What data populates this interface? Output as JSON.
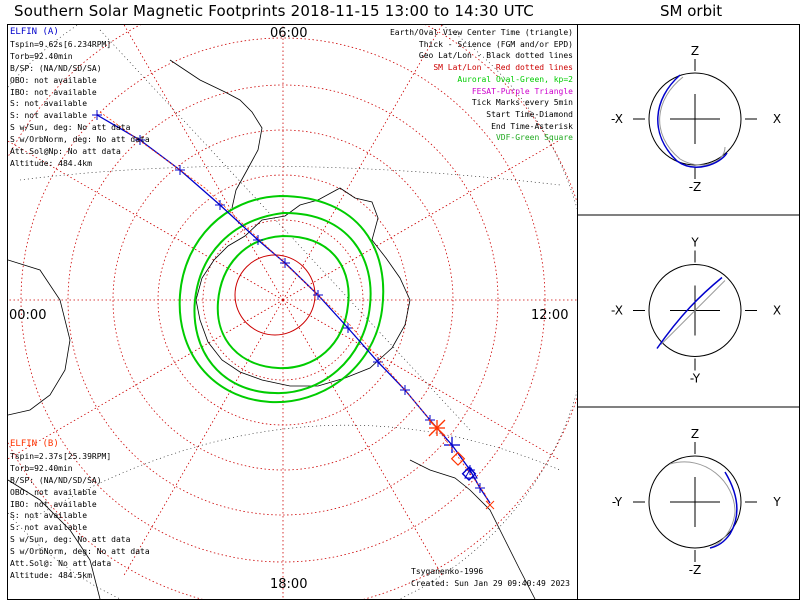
{
  "title": "Southern Solar Magnetic Footprints 2018-11-15 13:00 to 14:30 UTC",
  "orbit_title": "SM orbit",
  "colors": {
    "elfin_a": "#0000cc",
    "elfin_b": "#ff3300",
    "geo_grid": "#000000",
    "sm_grid": "#cc0000",
    "auroral_oval": "#00cc00",
    "fesat": "#cc00cc",
    "vdf": "#22aa22",
    "orbit_circle": "#000000",
    "orbit_path_b": "#999999"
  },
  "map": {
    "mlt_labels": {
      "top": "06:00",
      "left": "00:00",
      "right": "12:00",
      "bottom": "18:00"
    },
    "credit": "Tsyganenko-1996",
    "created": "Created: Sun Jan 29 09:40:49 2023"
  },
  "elfin_a": {
    "lines": [
      "ELFIN (A)",
      "Tspin=9.62s[6.234RPM]",
      "Torb=92.40min",
      "B/SP: (NA/ND/SD/SA)",
      "OBO: not available",
      "IBO: not available",
      "S: not available",
      "S: not available",
      "S w/Sun, deg: No att data",
      "S w/OrbNorm, deg: No att data",
      "Att.Sol@Np: No att data",
      "Altitude: 484.4km"
    ]
  },
  "elfin_b": {
    "lines": [
      "ELFIN (B)",
      "Tspin=2.37s[25.39RPM]",
      "Torb=92.40min",
      "B/SP: (NA/ND/SD/SA)",
      "OBO: not available",
      "IBO: not available",
      "S: not available",
      "S: not available",
      "S w/Sun, deg: No att data",
      "S w/OrbNorm, deg: No att data",
      "Att.Sol@: No att data",
      "Altitude: 484.5km"
    ]
  },
  "legend": [
    {
      "text": "Earth/Oval View Center Time (triangle)",
      "color": "#000000"
    },
    {
      "text": "Thick - Science (FGM and/or EPD)",
      "color": "#000000"
    },
    {
      "text": "Geo Lat/Lon - Black dotted lines",
      "color": "#000000"
    },
    {
      "text": "SM Lat/Lon - Red dotted lines",
      "color": "#cc0000"
    },
    {
      "text": "Auroral Oval-Green, kp=2",
      "color": "#00cc00"
    },
    {
      "text": "FESAT-Purple Triangle",
      "color": "#cc00cc"
    },
    {
      "text": "Tick Marks every 5min",
      "color": "#000000"
    },
    {
      "text": "Start Time-Diamond",
      "color": "#000000"
    },
    {
      "text": "End Time-Asterisk",
      "color": "#000000"
    },
    {
      "text": "VDF-Green Square",
      "color": "#22aa22"
    }
  ],
  "orbit_panels": [
    {
      "up": "Z",
      "down": "-Z",
      "left": "-X",
      "right": "X"
    },
    {
      "up": "Y",
      "down": "-Y",
      "left": "-X",
      "right": "X"
    },
    {
      "up": "Z",
      "down": "-Z",
      "left": "-Y",
      "right": "Y"
    }
  ]
}
